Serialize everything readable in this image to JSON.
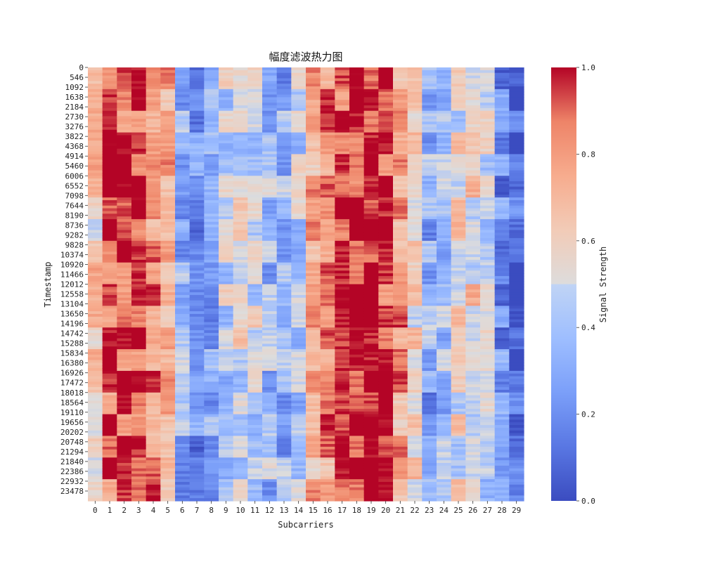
{
  "chart_data": {
    "type": "heatmap",
    "title": "幅度滤波热力图",
    "xlabel": "Subcarriers",
    "ylabel": "Timestamp",
    "x_ticks": [
      "0",
      "1",
      "2",
      "3",
      "4",
      "5",
      "6",
      "7",
      "8",
      "9",
      "10",
      "11",
      "12",
      "13",
      "14",
      "15",
      "16",
      "17",
      "18",
      "19",
      "20",
      "21",
      "22",
      "23",
      "24",
      "25",
      "26",
      "27",
      "28",
      "29"
    ],
    "y_ticks": [
      "0",
      "546",
      "1092",
      "1638",
      "2184",
      "2730",
      "3276",
      "3822",
      "4368",
      "4914",
      "5460",
      "6006",
      "6552",
      "7098",
      "7644",
      "8190",
      "8736",
      "9282",
      "9828",
      "10374",
      "10920",
      "11466",
      "12012",
      "12558",
      "13104",
      "13650",
      "14196",
      "14742",
      "15288",
      "15834",
      "16380",
      "16926",
      "17472",
      "18018",
      "18564",
      "19110",
      "19656",
      "20202",
      "20748",
      "21294",
      "21840",
      "22386",
      "22932",
      "23478"
    ],
    "colorbar": {
      "label": "Signal Strength",
      "range": [
        0,
        1
      ],
      "ticks": [
        "0.0",
        "0.2",
        "0.4",
        "0.6",
        "0.8",
        "1.0"
      ],
      "colormap": "coolwarm"
    },
    "column_mean_values": [
      0.62,
      0.9,
      0.93,
      0.9,
      0.86,
      0.7,
      0.32,
      0.22,
      0.3,
      0.45,
      0.5,
      0.47,
      0.35,
      0.3,
      0.42,
      0.72,
      0.82,
      0.95,
      1.0,
      1.0,
      0.96,
      0.78,
      0.6,
      0.28,
      0.35,
      0.55,
      0.58,
      0.45,
      0.2,
      0.05
    ],
    "colors": {
      "low": "#3b4cc0",
      "mid": "#dddddd",
      "high": "#b40426"
    }
  }
}
